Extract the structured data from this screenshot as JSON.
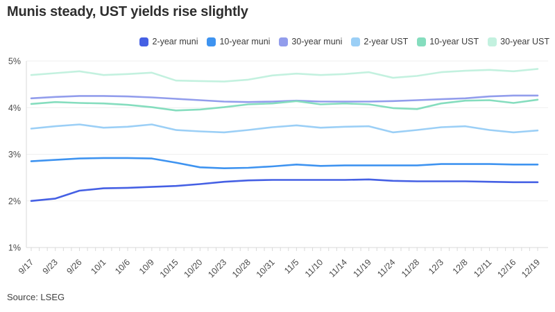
{
  "header": {
    "title": "Munis steady, UST yields rise slightly"
  },
  "source": {
    "label": "Source: LSEG"
  },
  "colors": {
    "grid": "#efefef",
    "axis": "#d9d9d9",
    "axis_text": "#4a4a4a",
    "title_text": "#2e2e2e"
  },
  "chart_data": {
    "type": "line",
    "title": "Munis steady, UST yields rise slightly",
    "xlabel": "",
    "ylabel": "",
    "ylim": [
      1,
      5
    ],
    "yticks": [
      "1%",
      "2%",
      "3%",
      "4%",
      "5%"
    ],
    "grid": true,
    "legend_position": "top-right",
    "source": "Source: LSEG",
    "x": [
      "9/17",
      "9/23",
      "9/26",
      "10/1",
      "10/6",
      "10/9",
      "10/15",
      "10/20",
      "10/23",
      "10/28",
      "10/31",
      "11/5",
      "11/10",
      "11/14",
      "11/19",
      "11/24",
      "11/28",
      "12/3",
      "12/8",
      "12/11",
      "12/16",
      "12/19"
    ],
    "series": [
      {
        "name": "2-year muni",
        "color": "#4560e4",
        "values": [
          2.0,
          2.05,
          2.22,
          2.27,
          2.28,
          2.3,
          2.32,
          2.36,
          2.41,
          2.44,
          2.45,
          2.45,
          2.45,
          2.45,
          2.46,
          2.43,
          2.42,
          2.42,
          2.42,
          2.41,
          2.4,
          2.4
        ]
      },
      {
        "name": "10-year muni",
        "color": "#3e93f0",
        "values": [
          2.85,
          2.88,
          2.91,
          2.92,
          2.92,
          2.91,
          2.82,
          2.72,
          2.7,
          2.71,
          2.74,
          2.78,
          2.75,
          2.76,
          2.76,
          2.76,
          2.76,
          2.79,
          2.79,
          2.79,
          2.78,
          2.78
        ]
      },
      {
        "name": "30-year muni",
        "color": "#929dec",
        "values": [
          4.2,
          4.23,
          4.25,
          4.25,
          4.24,
          4.22,
          4.19,
          4.16,
          4.13,
          4.12,
          4.13,
          4.15,
          4.13,
          4.13,
          4.13,
          4.14,
          4.16,
          4.18,
          4.2,
          4.24,
          4.26,
          4.26
        ]
      },
      {
        "name": "2-year UST",
        "color": "#9bcff6",
        "values": [
          3.55,
          3.6,
          3.64,
          3.57,
          3.59,
          3.64,
          3.52,
          3.49,
          3.47,
          3.52,
          3.58,
          3.62,
          3.57,
          3.59,
          3.6,
          3.47,
          3.52,
          3.58,
          3.6,
          3.52,
          3.47,
          3.51
        ]
      },
      {
        "name": "10-year UST",
        "color": "#85ddbe",
        "values": [
          4.08,
          4.12,
          4.1,
          4.09,
          4.06,
          4.01,
          3.94,
          3.96,
          4.01,
          4.07,
          4.09,
          4.14,
          4.07,
          4.09,
          4.07,
          3.99,
          3.97,
          4.09,
          4.15,
          4.16,
          4.1,
          4.17
        ]
      },
      {
        "name": "30-year UST",
        "color": "#c3f1df",
        "values": [
          4.7,
          4.74,
          4.78,
          4.7,
          4.72,
          4.75,
          4.58,
          4.57,
          4.56,
          4.6,
          4.69,
          4.73,
          4.7,
          4.72,
          4.76,
          4.64,
          4.68,
          4.76,
          4.79,
          4.81,
          4.78,
          4.83
        ]
      }
    ]
  }
}
